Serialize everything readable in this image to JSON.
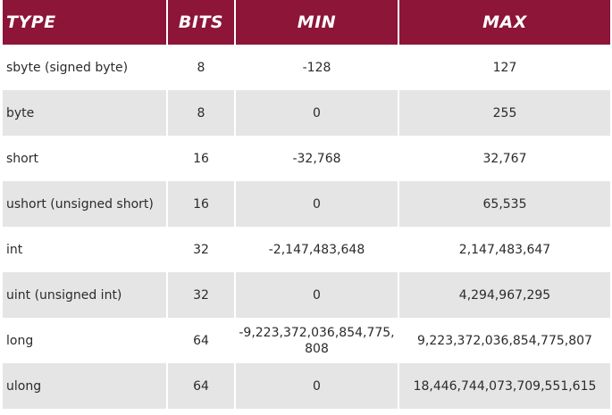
{
  "headers": {
    "type": "TYPE",
    "bits": "BITS",
    "min": "MIN",
    "max": "MAX"
  },
  "header_color": "#8c1538",
  "stripe_color": "#e5e5e5",
  "rows": [
    {
      "type": "sbyte (signed byte)",
      "bits": "8",
      "min": "-128",
      "max": "127"
    },
    {
      "type": "byte",
      "bits": "8",
      "min": "0",
      "max": "255"
    },
    {
      "type": "short",
      "bits": "16",
      "min": "-32,768",
      "max": "32,767"
    },
    {
      "type": "ushort (unsigned short)",
      "bits": "16",
      "min": "0",
      "max": "65,535"
    },
    {
      "type": "int",
      "bits": "32",
      "min": "-2,147,483,648",
      "max": "2,147,483,647"
    },
    {
      "type": "uint (unsigned int)",
      "bits": "32",
      "min": "0",
      "max": "4,294,967,295"
    },
    {
      "type": "long",
      "bits": "64",
      "min": "-9,223,372,036,854,775,808",
      "max": "9,223,372,036,854,775,807"
    },
    {
      "type": "ulong",
      "bits": "64",
      "min": "0",
      "max": "18,446,744,073,709,551,615"
    }
  ]
}
